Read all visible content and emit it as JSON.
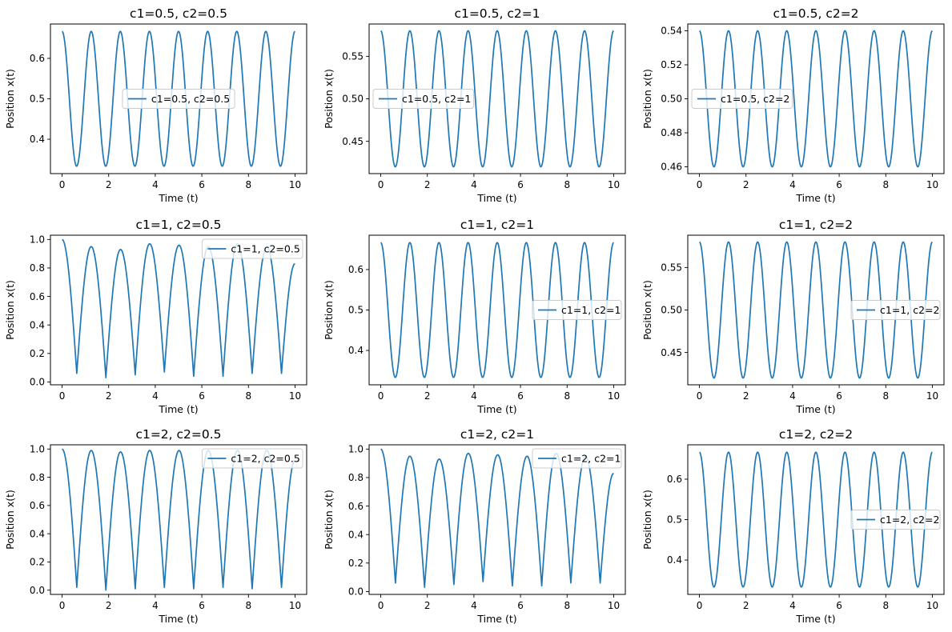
{
  "chart_data": [
    {
      "type": "line",
      "title": "c1=0.5, c2=0.5",
      "xlabel": "Time (t)",
      "ylabel": "Position x(t)",
      "xlim": [
        -0.5,
        10.5
      ],
      "ylim": [
        0.315,
        0.685
      ],
      "xticks": [
        0,
        2,
        4,
        6,
        8,
        10
      ],
      "yticks": [
        0.4,
        0.5,
        0.6
      ],
      "yticklabels": [
        "0.4",
        "0.5",
        "0.6"
      ],
      "legend": {
        "loc": "center",
        "label": "c1=0.5, c2=0.5"
      },
      "series": [
        {
          "name": "c1=0.5, c2=0.5",
          "shape": "sine",
          "center": 0.5,
          "amplitude": 0.1667,
          "period": 1.25
        }
      ]
    },
    {
      "type": "line",
      "title": "c1=0.5, c2=1",
      "xlabel": "Time (t)",
      "ylabel": "Position x(t)",
      "xlim": [
        -0.5,
        10.5
      ],
      "ylim": [
        0.412,
        0.588
      ],
      "xticks": [
        0,
        2,
        4,
        6,
        8,
        10
      ],
      "yticks": [
        0.45,
        0.5,
        0.55
      ],
      "yticklabels": [
        "0.45",
        "0.50",
        "0.55"
      ],
      "legend": {
        "loc": "center left",
        "label": "c1=0.5, c2=1"
      },
      "series": [
        {
          "name": "c1=0.5, c2=1",
          "shape": "sine",
          "center": 0.5,
          "amplitude": 0.08,
          "period": 1.25
        }
      ]
    },
    {
      "type": "line",
      "title": "c1=0.5, c2=2",
      "xlabel": "Time (t)",
      "ylabel": "Position x(t)",
      "xlim": [
        -0.5,
        10.5
      ],
      "ylim": [
        0.456,
        0.544
      ],
      "xticks": [
        0,
        2,
        4,
        6,
        8,
        10
      ],
      "yticks": [
        0.46,
        0.48,
        0.5,
        0.52,
        0.54
      ],
      "yticklabels": [
        "0.46",
        "0.48",
        "0.50",
        "0.52",
        "0.54"
      ],
      "legend": {
        "loc": "center left",
        "label": "c1=0.5, c2=2"
      },
      "series": [
        {
          "name": "c1=0.5, c2=2",
          "shape": "sine",
          "center": 0.5,
          "amplitude": 0.04,
          "period": 1.25
        }
      ]
    },
    {
      "type": "line",
      "title": "c1=1, c2=0.5",
      "xlabel": "Time (t)",
      "ylabel": "Position x(t)",
      "xlim": [
        -0.5,
        10.5
      ],
      "ylim": [
        -0.02,
        1.03
      ],
      "xticks": [
        0,
        2,
        4,
        6,
        8,
        10
      ],
      "yticks": [
        0,
        0.2,
        0.4,
        0.6,
        0.8,
        1.0
      ],
      "yticklabels": [
        "0.0",
        "0.2",
        "0.4",
        "0.6",
        "0.8",
        "1.0"
      ],
      "legend": {
        "loc": "upper right",
        "label": "c1=1, c2=0.5"
      },
      "series": [
        {
          "name": "c1=1, c2=0.5",
          "shape": "cusp",
          "start": 1.0,
          "extrema": [
            [
              0.63,
              0.06
            ],
            [
              1.25,
              0.95
            ],
            [
              1.88,
              0.03
            ],
            [
              2.51,
              0.93
            ],
            [
              3.14,
              0.05
            ],
            [
              3.76,
              0.97
            ],
            [
              4.39,
              0.07
            ],
            [
              5.02,
              0.96
            ],
            [
              5.65,
              0.04
            ],
            [
              6.28,
              0.95
            ],
            [
              6.91,
              0.04
            ],
            [
              7.53,
              0.97
            ],
            [
              8.16,
              0.06
            ],
            [
              8.79,
              0.95
            ],
            [
              9.42,
              0.06
            ]
          ],
          "end": 0.83
        }
      ]
    },
    {
      "type": "line",
      "title": "c1=1, c2=1",
      "xlabel": "Time (t)",
      "ylabel": "Position x(t)",
      "xlim": [
        -0.5,
        10.5
      ],
      "ylim": [
        0.315,
        0.685
      ],
      "xticks": [
        0,
        2,
        4,
        6,
        8,
        10
      ],
      "yticks": [
        0.4,
        0.5,
        0.6
      ],
      "yticklabels": [
        "0.4",
        "0.5",
        "0.6"
      ],
      "legend": {
        "loc": "center right",
        "label": "c1=1, c2=1"
      },
      "series": [
        {
          "name": "c1=1, c2=1",
          "shape": "sine",
          "center": 0.5,
          "amplitude": 0.1667,
          "period": 1.25
        }
      ]
    },
    {
      "type": "line",
      "title": "c1=1, c2=2",
      "xlabel": "Time (t)",
      "ylabel": "Position x(t)",
      "xlim": [
        -0.5,
        10.5
      ],
      "ylim": [
        0.412,
        0.588
      ],
      "xticks": [
        0,
        2,
        4,
        6,
        8,
        10
      ],
      "yticks": [
        0.45,
        0.5,
        0.55
      ],
      "yticklabels": [
        "0.45",
        "0.50",
        "0.55"
      ],
      "legend": {
        "loc": "center right",
        "label": "c1=1, c2=2"
      },
      "series": [
        {
          "name": "c1=1, c2=2",
          "shape": "sine",
          "center": 0.5,
          "amplitude": 0.08,
          "period": 1.25
        }
      ]
    },
    {
      "type": "line",
      "title": "c1=2, c2=0.5",
      "xlabel": "Time (t)",
      "ylabel": "Position x(t)",
      "xlim": [
        -0.5,
        10.5
      ],
      "ylim": [
        -0.03,
        1.03
      ],
      "xticks": [
        0,
        2,
        4,
        6,
        8,
        10
      ],
      "yticks": [
        0,
        0.2,
        0.4,
        0.6,
        0.8,
        1.0
      ],
      "yticklabels": [
        "0.0",
        "0.2",
        "0.4",
        "0.6",
        "0.8",
        "1.0"
      ],
      "legend": {
        "loc": "upper right",
        "label": "c1=2, c2=0.5"
      },
      "series": [
        {
          "name": "c1=2, c2=0.5",
          "shape": "cusp",
          "start": 1.0,
          "extrema": [
            [
              0.63,
              0.02
            ],
            [
              1.25,
              0.99
            ],
            [
              1.88,
              0.0
            ],
            [
              2.51,
              0.98
            ],
            [
              3.14,
              0.01
            ],
            [
              3.76,
              0.99
            ],
            [
              4.39,
              0.02
            ],
            [
              5.02,
              0.99
            ],
            [
              5.65,
              0.01
            ],
            [
              6.28,
              0.99
            ],
            [
              6.91,
              0.02
            ],
            [
              7.53,
              0.99
            ],
            [
              8.16,
              0.01
            ],
            [
              8.79,
              0.99
            ],
            [
              9.42,
              0.02
            ]
          ],
          "end": 0.92
        }
      ]
    },
    {
      "type": "line",
      "title": "c1=2, c2=1",
      "xlabel": "Time (t)",
      "ylabel": "Position x(t)",
      "xlim": [
        -0.5,
        10.5
      ],
      "ylim": [
        -0.02,
        1.03
      ],
      "xticks": [
        0,
        2,
        4,
        6,
        8,
        10
      ],
      "yticks": [
        0,
        0.2,
        0.4,
        0.6,
        0.8,
        1.0
      ],
      "yticklabels": [
        "0.0",
        "0.2",
        "0.4",
        "0.6",
        "0.8",
        "1.0"
      ],
      "legend": {
        "loc": "upper right",
        "label": "c1=2, c2=1"
      },
      "series": [
        {
          "name": "c1=2, c2=1",
          "shape": "cusp",
          "start": 1.0,
          "extrema": [
            [
              0.63,
              0.06
            ],
            [
              1.25,
              0.95
            ],
            [
              1.88,
              0.03
            ],
            [
              2.51,
              0.93
            ],
            [
              3.14,
              0.05
            ],
            [
              3.76,
              0.97
            ],
            [
              4.39,
              0.07
            ],
            [
              5.02,
              0.96
            ],
            [
              5.65,
              0.04
            ],
            [
              6.28,
              0.95
            ],
            [
              6.91,
              0.04
            ],
            [
              7.53,
              0.97
            ],
            [
              8.16,
              0.06
            ],
            [
              8.79,
              0.95
            ],
            [
              9.42,
              0.06
            ]
          ],
          "end": 0.83
        }
      ]
    },
    {
      "type": "line",
      "title": "c1=2, c2=2",
      "xlabel": "Time (t)",
      "ylabel": "Position x(t)",
      "xlim": [
        -0.5,
        10.5
      ],
      "ylim": [
        0.315,
        0.685
      ],
      "xticks": [
        0,
        2,
        4,
        6,
        8,
        10
      ],
      "yticks": [
        0.4,
        0.5,
        0.6
      ],
      "yticklabels": [
        "0.4",
        "0.5",
        "0.6"
      ],
      "legend": {
        "loc": "center right",
        "label": "c1=2, c2=2"
      },
      "series": [
        {
          "name": "c1=2, c2=2",
          "shape": "sine",
          "center": 0.5,
          "amplitude": 0.1667,
          "period": 1.25
        }
      ]
    }
  ],
  "colors": {
    "line": "#1f77b4",
    "axes": "#000000",
    "legend_border": "#cccccc"
  }
}
